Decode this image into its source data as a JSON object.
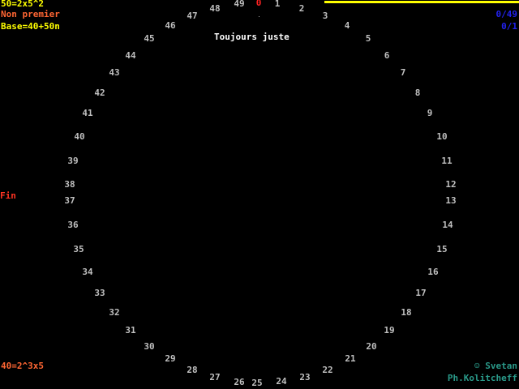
{
  "status": {
    "factorization": "50=2x5^2",
    "primality": "Non premier",
    "base": "Base=40+50n",
    "end_label": "Fin",
    "bottom_factorization": "40=2^3x5",
    "message": "Toujours juste",
    "score": "0/49",
    "ratio": "0/1",
    "progress_fraction": 1.0
  },
  "credits": {
    "line1": "☺ Svetan",
    "line2": "Ph.Kolitcheff"
  },
  "dial": {
    "numbers": [
      "0",
      "1",
      "2",
      "3",
      "4",
      "5",
      "6",
      "7",
      "8",
      "9",
      "10",
      "11",
      "12",
      "13",
      "14",
      "15",
      "16",
      "17",
      "18",
      "19",
      "20",
      "21",
      "22",
      "23",
      "24",
      "25",
      "26",
      "27",
      "28",
      "29",
      "30",
      "31",
      "32",
      "33",
      "34",
      "35",
      "36",
      "37",
      "38",
      "39",
      "40",
      "41",
      "42",
      "43",
      "44",
      "45",
      "46",
      "47",
      "48",
      "49"
    ],
    "highlighted_index": 0
  },
  "colors": {
    "yellow": "#ffff00",
    "orange": "#ff6633",
    "red": "#ff2222",
    "blue": "#2222ee",
    "teal": "#2a9a8a",
    "grey": "#c0c0c0"
  }
}
